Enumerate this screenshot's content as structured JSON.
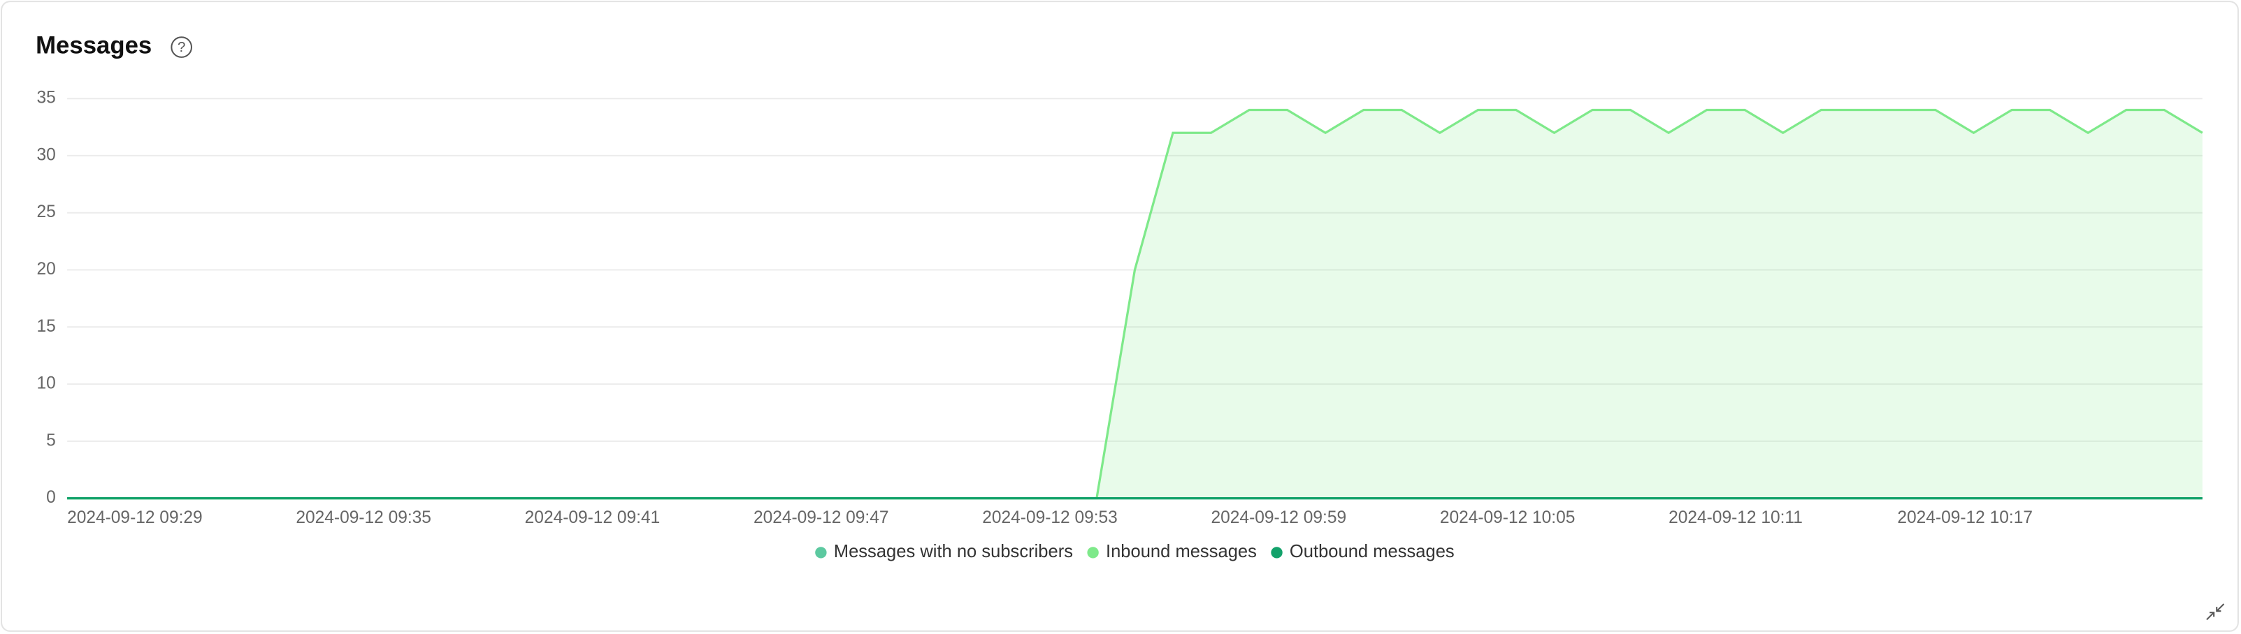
{
  "chart_data": {
    "type": "area",
    "title": "Messages",
    "categories": [
      "2024-09-12 09:29",
      null,
      null,
      null,
      null,
      null,
      "2024-09-12 09:35",
      null,
      null,
      null,
      null,
      null,
      "2024-09-12 09:41",
      null,
      null,
      null,
      null,
      null,
      "2024-09-12 09:47",
      null,
      null,
      null,
      null,
      null,
      "2024-09-12 09:53",
      null,
      null,
      null,
      null,
      null,
      "2024-09-12 09:59",
      null,
      null,
      null,
      null,
      null,
      "2024-09-12 10:05",
      null,
      null,
      null,
      null,
      null,
      "2024-09-12 10:11",
      null,
      null,
      null,
      null,
      null,
      "2024-09-12 10:17",
      null,
      null,
      null,
      null,
      null,
      null,
      null,
      null
    ],
    "series": [
      {
        "name": "Messages with no subscribers",
        "color": "#5cc9a0",
        "values": [
          0,
          0,
          0,
          0,
          0,
          0,
          0,
          0,
          0,
          0,
          0,
          0,
          0,
          0,
          0,
          0,
          0,
          0,
          0,
          0,
          0,
          0,
          0,
          0,
          0,
          0,
          0,
          0,
          0,
          0,
          0,
          0,
          0,
          0,
          0,
          0,
          0,
          0,
          0,
          0,
          0,
          0,
          0,
          0,
          0,
          0,
          0,
          0,
          0,
          0,
          0,
          0,
          0,
          0,
          0,
          0,
          0
        ]
      },
      {
        "name": "Inbound messages",
        "color": "#7ee98a",
        "values": [
          0,
          0,
          0,
          0,
          0,
          0,
          0,
          0,
          0,
          0,
          0,
          0,
          0,
          0,
          0,
          0,
          0,
          0,
          0,
          0,
          0,
          0,
          0,
          0,
          0,
          0,
          0,
          0,
          20,
          32,
          32,
          34,
          34,
          32,
          34,
          34,
          32,
          34,
          34,
          32,
          34,
          34,
          32,
          34,
          34,
          32,
          34,
          34,
          34,
          34,
          32,
          34,
          34,
          32,
          34,
          34,
          32
        ]
      },
      {
        "name": "Outbound messages",
        "color": "#13a26b",
        "values": [
          0,
          0,
          0,
          0,
          0,
          0,
          0,
          0,
          0,
          0,
          0,
          0,
          0,
          0,
          0,
          0,
          0,
          0,
          0,
          0,
          0,
          0,
          0,
          0,
          0,
          0,
          0,
          0,
          0,
          0,
          0,
          0,
          0,
          0,
          0,
          0,
          0,
          0,
          0,
          0,
          0,
          0,
          0,
          0,
          0,
          0,
          0,
          0,
          0,
          0,
          0,
          0,
          0,
          0,
          0,
          0,
          0
        ]
      }
    ],
    "ylim": [
      0,
      35
    ],
    "yticks": [
      0,
      5,
      10,
      15,
      20,
      25,
      30,
      35
    ],
    "grid": true,
    "legend": "bottom"
  }
}
